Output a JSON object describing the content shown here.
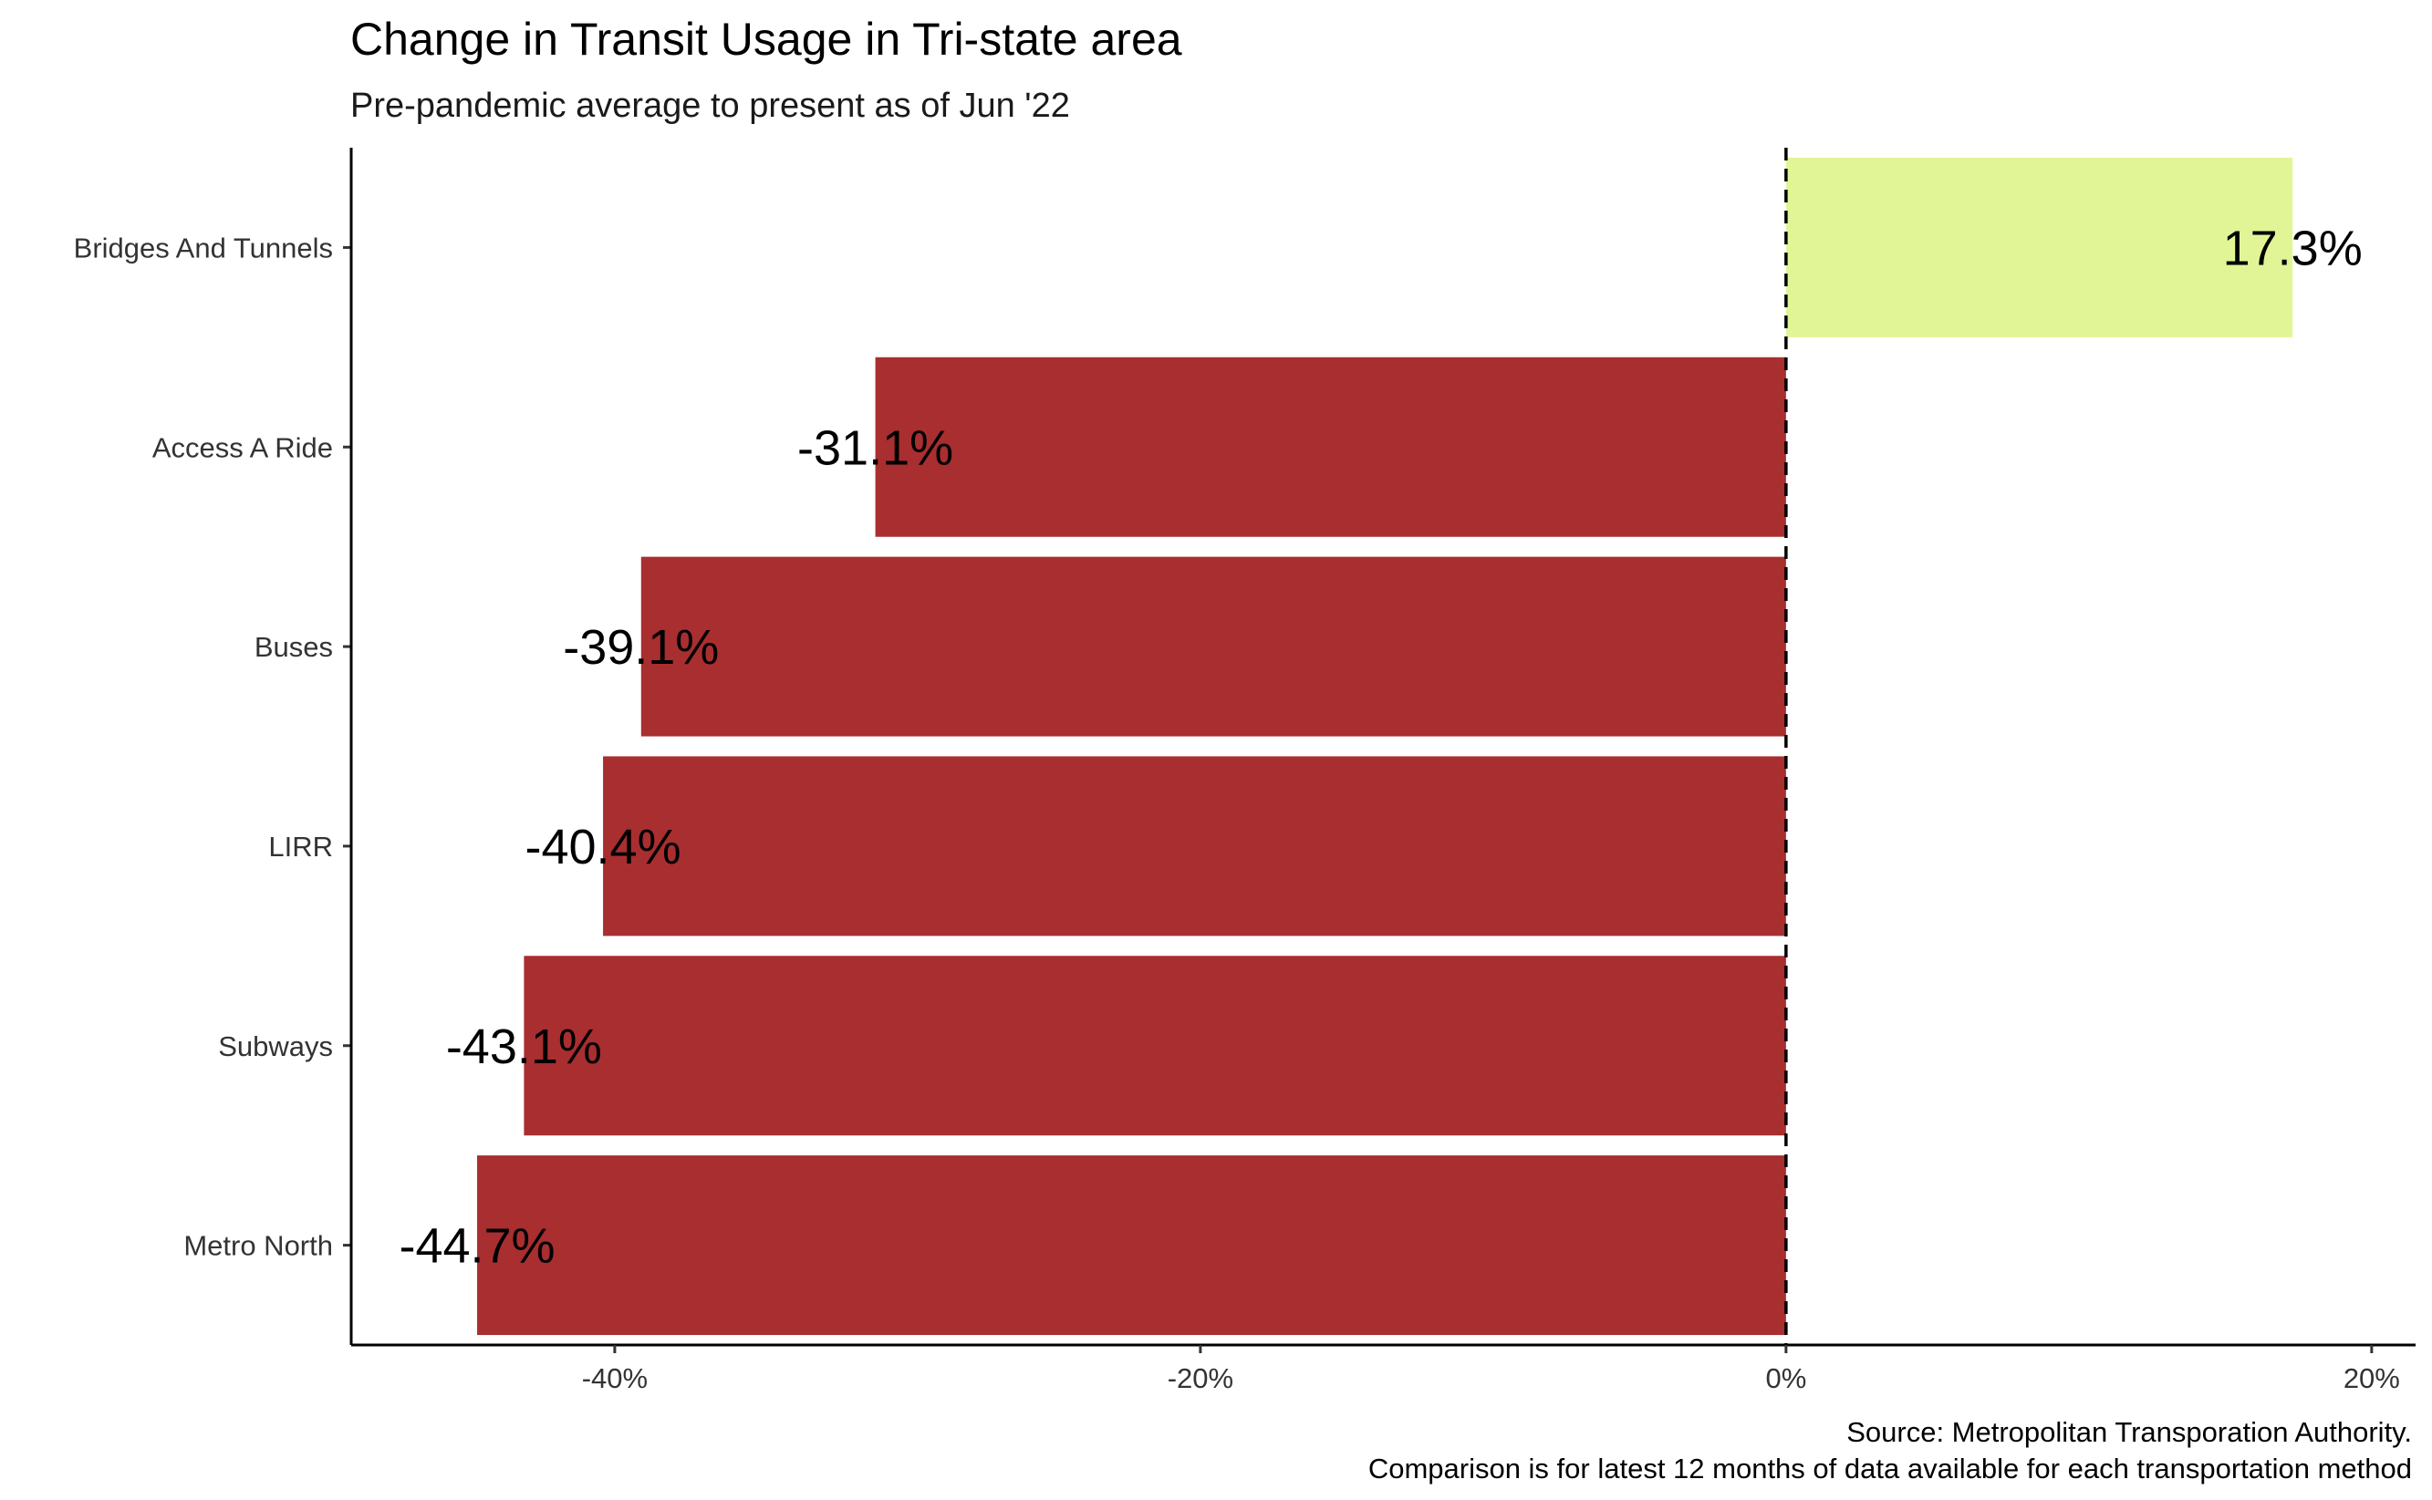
{
  "chart_data": {
    "type": "bar",
    "orientation": "horizontal",
    "title": "Change in Transit Usage in Tri-state area",
    "subtitle": "Pre-pandemic average to present as of Jun '22",
    "caption_lines": [
      "Source: Metropolitan Transporation Authority.",
      "Comparison is for latest 12 months of data available for each transportation method"
    ],
    "categories": [
      "Bridges And Tunnels",
      "Access A Ride",
      "Buses",
      "LIRR",
      "Subways",
      "Metro North"
    ],
    "values": [
      17.3,
      -31.1,
      -39.1,
      -40.4,
      -43.1,
      -44.7
    ],
    "data_labels": [
      "17.3%",
      "-31.1%",
      "-39.1%",
      "-40.4%",
      "-43.1%",
      "-44.7%"
    ],
    "xlim": [
      -49,
      21.5
    ],
    "x_ticks": [
      -40,
      -20,
      0,
      20
    ],
    "x_tick_labels": [
      "-40%",
      "-20%",
      "0%",
      "20%"
    ],
    "reference_line": 0,
    "grid": false,
    "colors": {
      "positive": "#e2f596",
      "negative": "#a82e30",
      "reference_line": "#000000"
    }
  }
}
